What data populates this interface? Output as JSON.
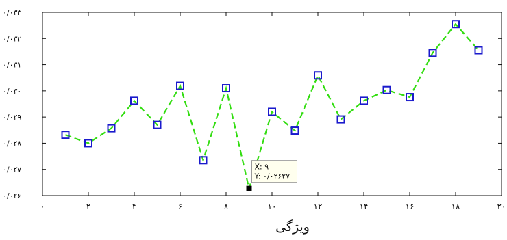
{
  "chart_data": {
    "type": "line",
    "xlabel": "ویژگی",
    "ylabel": "",
    "xlim": [
      0,
      20
    ],
    "ylim": [
      0.026,
      0.033
    ],
    "x_ticks": [
      0,
      2,
      4,
      6,
      8,
      10,
      12,
      14,
      16,
      18,
      20
    ],
    "x_tick_labels": [
      "۰",
      "۲",
      "۴",
      "۶",
      "۸",
      "۱۰",
      "۱۲",
      "۱۴",
      "۱۶",
      "۱۸",
      "۲۰"
    ],
    "y_ticks": [
      0.026,
      0.027,
      0.028,
      0.029,
      0.03,
      0.031,
      0.032,
      0.033
    ],
    "y_tick_labels": [
      "۰/۰۲۶",
      "۰/۰۲۷",
      "۰/۰۲۸",
      "۰/۰۲۹",
      "۰/۰۳۰",
      "۰/۰۳۱",
      "۰/۰۳۲",
      "۰/۰۳۳"
    ],
    "grid": false,
    "series": [
      {
        "line_color": "#33dd11",
        "marker_color": "#1a1acc",
        "x": [
          1,
          2,
          3,
          4,
          5,
          6,
          7,
          8,
          9,
          10,
          11,
          12,
          13,
          14,
          15,
          16,
          17,
          18,
          19
        ],
        "y": [
          0.02832,
          0.028,
          0.02857,
          0.02962,
          0.0287,
          0.03019,
          0.02735,
          0.0301,
          0.02627,
          0.0292,
          0.02848,
          0.03059,
          0.02891,
          0.02962,
          0.03003,
          0.02976,
          0.03145,
          0.03255,
          0.03155
        ]
      }
    ],
    "datatip": {
      "x": 9,
      "y": 0.02627,
      "x_text": "X: ۹",
      "y_text": "Y: ۰/۰۲۶۲۷"
    }
  }
}
